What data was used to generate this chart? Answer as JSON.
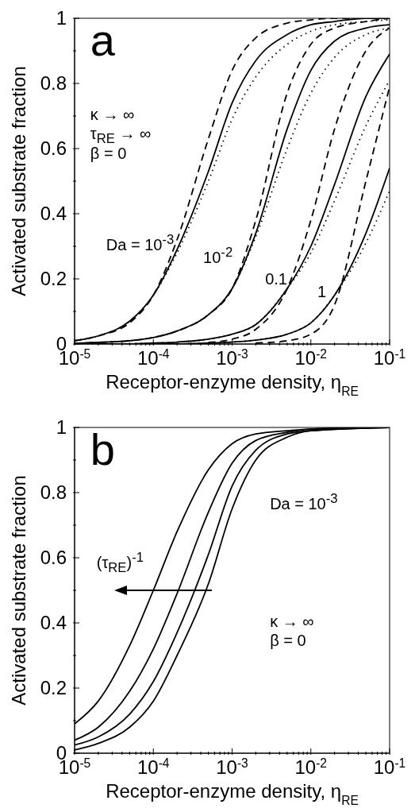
{
  "chart_data": [
    {
      "type": "line",
      "log": "x",
      "xlabel": "Receptor-enzyme density, η$_{RE}$",
      "ylabel": "Activated substrate fraction",
      "xlim": [
        1e-05,
        0.1
      ],
      "ylim": [
        0,
        1
      ],
      "xticks": [
        {
          "value": 1e-05,
          "label": "10$^{-5}$"
        },
        {
          "value": 2e-05,
          "label": null
        },
        {
          "value": 3e-05,
          "label": null
        },
        {
          "value": 4e-05,
          "label": null
        },
        {
          "value": 5e-05,
          "label": null
        },
        {
          "value": 6e-05,
          "label": null
        },
        {
          "value": 7e-05,
          "label": null
        },
        {
          "value": 8e-05,
          "label": null
        },
        {
          "value": 9e-05,
          "label": null
        },
        {
          "value": 0.0001,
          "label": "10$^{-4}$"
        },
        {
          "value": 0.0002,
          "label": null
        },
        {
          "value": 0.0003,
          "label": null
        },
        {
          "value": 0.0004,
          "label": null
        },
        {
          "value": 0.0005,
          "label": null
        },
        {
          "value": 0.0006,
          "label": null
        },
        {
          "value": 0.0007,
          "label": null
        },
        {
          "value": 0.0008,
          "label": null
        },
        {
          "value": 0.0009,
          "label": null
        },
        {
          "value": 0.001,
          "label": "10$^{-3}$"
        },
        {
          "value": 0.002,
          "label": null
        },
        {
          "value": 0.003,
          "label": null
        },
        {
          "value": 0.004,
          "label": null
        },
        {
          "value": 0.005,
          "label": null
        },
        {
          "value": 0.006,
          "label": null
        },
        {
          "value": 0.007,
          "label": null
        },
        {
          "value": 0.008,
          "label": null
        },
        {
          "value": 0.009,
          "label": null
        },
        {
          "value": 0.01,
          "label": "10$^{-2}$"
        },
        {
          "value": 0.02,
          "label": null
        },
        {
          "value": 0.03,
          "label": null
        },
        {
          "value": 0.04,
          "label": null
        },
        {
          "value": 0.05,
          "label": null
        },
        {
          "value": 0.06,
          "label": null
        },
        {
          "value": 0.07,
          "label": null
        },
        {
          "value": 0.08,
          "label": null
        },
        {
          "value": 0.09,
          "label": null
        },
        {
          "value": 0.1,
          "label": "10$^{-1}$"
        }
      ],
      "yticks": [
        0,
        {
          "value": 0.1,
          "label": null
        },
        0.2,
        {
          "value": 0.3,
          "label": null
        },
        0.4,
        {
          "value": 0.5,
          "label": null
        },
        0.6,
        {
          "value": 0.7,
          "label": null
        },
        0.8,
        {
          "value": 0.9,
          "label": null
        },
        1
      ],
      "annotations": [
        "a",
        "κ → ∞",
        "τ$_{RE}$ → ∞",
        "β = 0",
        "Da = 10$^{-3}$",
        "10$^{-2}$",
        "0.1",
        "1"
      ],
      "series": [
        {
          "color": "#000000",
          "line_style": "solid",
          "x": [
            1e-05,
            2e-05,
            5e-05,
            0.0001,
            0.0002,
            0.0005,
            0.001,
            0.002,
            0.005,
            0.01,
            0.02,
            0.05,
            0.1
          ],
          "values": [
            0.01,
            0.025,
            0.07,
            0.15,
            0.29,
            0.53,
            0.74,
            0.87,
            0.95,
            0.98,
            0.99,
            1,
            1
          ]
        },
        {
          "color": "#000000",
          "line_style": "dashed",
          "x": [
            1e-05,
            2e-05,
            5e-05,
            0.0001,
            0.0002,
            0.0005,
            0.001,
            0.002,
            0.005,
            0.01,
            0.02,
            0.05
          ],
          "values": [
            0.01,
            0.025,
            0.065,
            0.15,
            0.32,
            0.63,
            0.84,
            0.94,
            0.985,
            0.995,
            1,
            1
          ]
        },
        {
          "color": "#000000",
          "line_style": "dotted",
          "x": [
            1e-05,
            2e-05,
            5e-05,
            0.0001,
            0.0002,
            0.0005,
            0.001,
            0.002,
            0.005,
            0.01,
            0.02,
            0.05,
            0.1
          ],
          "values": [
            0.01,
            0.025,
            0.07,
            0.15,
            0.28,
            0.5,
            0.69,
            0.82,
            0.92,
            0.96,
            0.98,
            0.99,
            0.995
          ]
        },
        {
          "color": "#000000",
          "line_style": "solid",
          "x": [
            1e-05,
            2e-05,
            5e-05,
            0.0001,
            0.0002,
            0.0005,
            0.001,
            0.002,
            0.005,
            0.01,
            0.02,
            0.05,
            0.1
          ],
          "values": [
            0.002,
            0.005,
            0.01,
            0.02,
            0.04,
            0.09,
            0.17,
            0.34,
            0.66,
            0.84,
            0.93,
            0.97,
            0.98
          ]
        },
        {
          "color": "#000000",
          "line_style": "dashed",
          "x": [
            1e-05,
            2e-05,
            5e-05,
            0.0001,
            0.0002,
            0.0005,
            0.001,
            0.002,
            0.005,
            0.01,
            0.02,
            0.05,
            0.1
          ],
          "values": [
            0.002,
            0.005,
            0.01,
            0.02,
            0.04,
            0.09,
            0.17,
            0.38,
            0.77,
            0.92,
            0.97,
            0.99,
            1
          ]
        },
        {
          "color": "#000000",
          "line_style": "dotted",
          "x": [
            1e-05,
            2e-05,
            5e-05,
            0.0001,
            0.0002,
            0.0005,
            0.001,
            0.002,
            0.005,
            0.01,
            0.02,
            0.05,
            0.1
          ],
          "values": [
            0.002,
            0.005,
            0.01,
            0.02,
            0.04,
            0.09,
            0.17,
            0.33,
            0.6,
            0.77,
            0.88,
            0.95,
            0.97
          ]
        },
        {
          "color": "#000000",
          "line_style": "solid",
          "x": [
            1e-05,
            2e-05,
            5e-05,
            0.0001,
            0.0002,
            0.0005,
            0.001,
            0.002,
            0.005,
            0.01,
            0.02,
            0.05,
            0.1
          ],
          "values": [
            0,
            0,
            0,
            0.003,
            0.006,
            0.015,
            0.03,
            0.06,
            0.17,
            0.3,
            0.49,
            0.76,
            0.89
          ]
        },
        {
          "color": "#000000",
          "line_style": "dashed",
          "x": [
            0.0005,
            0.001,
            0.002,
            0.005,
            0.01,
            0.02,
            0.05,
            0.1
          ],
          "values": [
            0.005,
            0.015,
            0.045,
            0.17,
            0.38,
            0.66,
            0.9,
            0.97
          ]
        },
        {
          "color": "#000000",
          "line_style": "dotted",
          "x": [
            1e-05,
            2e-05,
            5e-05,
            0.0001,
            0.0002,
            0.0005,
            0.001,
            0.002,
            0.005,
            0.01,
            0.02,
            0.05,
            0.1
          ],
          "values": [
            0,
            0,
            0,
            0.003,
            0.006,
            0.015,
            0.03,
            0.06,
            0.17,
            0.28,
            0.44,
            0.67,
            0.81
          ]
        },
        {
          "color": "#000000",
          "line_style": "solid",
          "x": [
            1e-05,
            2e-05,
            5e-05,
            0.0001,
            0.0002,
            0.0005,
            0.001,
            0.002,
            0.005,
            0.01,
            0.02,
            0.05,
            0.1
          ],
          "values": [
            0,
            0,
            0,
            0,
            0,
            0.003,
            0.006,
            0.012,
            0.03,
            0.065,
            0.15,
            0.34,
            0.54
          ]
        },
        {
          "color": "#000000",
          "line_style": "dashed",
          "x": [
            0.002,
            0.005,
            0.01,
            0.02,
            0.05,
            0.1
          ],
          "values": [
            0.003,
            0.01,
            0.03,
            0.12,
            0.5,
            0.79
          ]
        },
        {
          "color": "#000000",
          "line_style": "dotted",
          "x": [
            1e-05,
            2e-05,
            5e-05,
            0.0001,
            0.0002,
            0.0005,
            0.001,
            0.002,
            0.005,
            0.01,
            0.02,
            0.05,
            0.1
          ],
          "values": [
            0,
            0,
            0,
            0,
            0,
            0.003,
            0.006,
            0.012,
            0.03,
            0.065,
            0.15,
            0.31,
            0.47
          ]
        }
      ]
    },
    {
      "type": "line",
      "log": "x",
      "xlabel": "Receptor-enzyme density, η$_{RE}$",
      "ylabel": "Activated substrate fraction",
      "xlim": [
        1e-05,
        0.1
      ],
      "ylim": [
        0,
        1
      ],
      "xticks": [
        {
          "value": 1e-05,
          "label": "10$^{-5}$"
        },
        {
          "value": 2e-05,
          "label": null
        },
        {
          "value": 3e-05,
          "label": null
        },
        {
          "value": 4e-05,
          "label": null
        },
        {
          "value": 5e-05,
          "label": null
        },
        {
          "value": 6e-05,
          "label": null
        },
        {
          "value": 7e-05,
          "label": null
        },
        {
          "value": 8e-05,
          "label": null
        },
        {
          "value": 9e-05,
          "label": null
        },
        {
          "value": 0.0001,
          "label": "10$^{-4}$"
        },
        {
          "value": 0.0002,
          "label": null
        },
        {
          "value": 0.0003,
          "label": null
        },
        {
          "value": 0.0004,
          "label": null
        },
        {
          "value": 0.0005,
          "label": null
        },
        {
          "value": 0.0006,
          "label": null
        },
        {
          "value": 0.0007,
          "label": null
        },
        {
          "value": 0.0008,
          "label": null
        },
        {
          "value": 0.0009,
          "label": null
        },
        {
          "value": 0.001,
          "label": "10$^{-3}$"
        },
        {
          "value": 0.002,
          "label": null
        },
        {
          "value": 0.003,
          "label": null
        },
        {
          "value": 0.004,
          "label": null
        },
        {
          "value": 0.005,
          "label": null
        },
        {
          "value": 0.006,
          "label": null
        },
        {
          "value": 0.007,
          "label": null
        },
        {
          "value": 0.008,
          "label": null
        },
        {
          "value": 0.009,
          "label": null
        },
        {
          "value": 0.01,
          "label": "10$^{-2}$"
        },
        {
          "value": 0.02,
          "label": null
        },
        {
          "value": 0.03,
          "label": null
        },
        {
          "value": 0.04,
          "label": null
        },
        {
          "value": 0.05,
          "label": null
        },
        {
          "value": 0.06,
          "label": null
        },
        {
          "value": 0.07,
          "label": null
        },
        {
          "value": 0.08,
          "label": null
        },
        {
          "value": 0.09,
          "label": null
        },
        {
          "value": 0.1,
          "label": "10$^{-1}$"
        }
      ],
      "yticks": [
        0,
        {
          "value": 0.1,
          "label": null
        },
        0.2,
        {
          "value": 0.3,
          "label": null
        },
        0.4,
        {
          "value": 0.5,
          "label": null
        },
        0.6,
        {
          "value": 0.7,
          "label": null
        },
        0.8,
        {
          "value": 0.9,
          "label": null
        },
        1
      ],
      "annotations": [
        "b",
        "Da = 10$^{-3}$",
        "(τ$_{RE}$)$^{-1}$",
        "κ → ∞",
        "β = 0"
      ],
      "series": [
        {
          "color": "#000000",
          "line_style": "solid",
          "x": [
            1e-05,
            2e-05,
            5e-05,
            0.0001,
            0.0002,
            0.0005,
            0.001,
            0.002,
            0.005,
            0.01,
            0.1
          ],
          "values": [
            0.09,
            0.16,
            0.33,
            0.5,
            0.68,
            0.87,
            0.95,
            0.98,
            0.99,
            0.995,
            1
          ]
        },
        {
          "color": "#000000",
          "line_style": "solid",
          "x": [
            1e-05,
            2e-05,
            5e-05,
            0.0001,
            0.0002,
            0.0005,
            0.001,
            0.002,
            0.005,
            0.01,
            0.1
          ],
          "values": [
            0.04,
            0.08,
            0.19,
            0.32,
            0.49,
            0.74,
            0.89,
            0.96,
            0.985,
            0.995,
            1
          ]
        },
        {
          "color": "#000000",
          "line_style": "solid",
          "x": [
            1e-05,
            2e-05,
            5e-05,
            0.0001,
            0.0002,
            0.0005,
            0.001,
            0.002,
            0.005,
            0.01,
            0.1
          ],
          "values": [
            0.025,
            0.05,
            0.12,
            0.22,
            0.37,
            0.61,
            0.82,
            0.93,
            0.98,
            0.99,
            1
          ]
        },
        {
          "color": "#000000",
          "line_style": "solid",
          "x": [
            1e-05,
            2e-05,
            5e-05,
            0.0001,
            0.0002,
            0.0005,
            0.001,
            0.002,
            0.005,
            0.01,
            0.1
          ],
          "values": [
            0.01,
            0.03,
            0.08,
            0.16,
            0.3,
            0.52,
            0.75,
            0.9,
            0.97,
            0.99,
            1
          ]
        }
      ]
    }
  ]
}
